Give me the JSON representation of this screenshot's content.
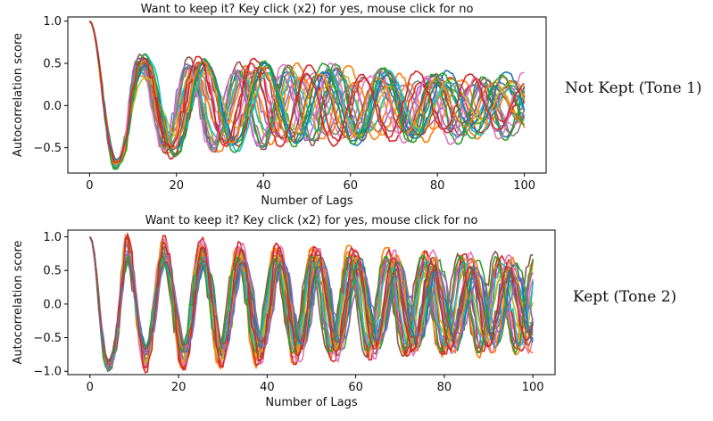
{
  "chart_data": [
    {
      "type": "line",
      "title": "Want to keep it? Key click (x2) for yes, mouse click for no",
      "xlabel": "Number of Lags",
      "ylabel": "Autocorrelation score",
      "xlim": [
        -5,
        105
      ],
      "ylim": [
        -0.8,
        1.05
      ],
      "xticks": [
        0,
        20,
        40,
        60,
        80,
        100
      ],
      "yticks": [
        -0.5,
        0.0,
        0.5,
        1.0
      ],
      "ytick_labels": [
        "−0.5",
        "0.0",
        "0.5",
        "1.0"
      ],
      "grid": false,
      "series_count": 24,
      "model": {
        "lags": 100,
        "start": 1.0,
        "first_min": -0.72,
        "first_min_lag": 6,
        "period_range": [
          11,
          14.5
        ],
        "amplitude_start": 0.55,
        "amplitude_end": 0.28
      }
    },
    {
      "type": "line",
      "title": "Want to keep it? Key click (x2) for yes, mouse click for no",
      "xlabel": "Number of Lags",
      "ylabel": "Autocorrelation score",
      "xlim": [
        -5,
        105
      ],
      "ylim": [
        -1.05,
        1.1
      ],
      "xticks": [
        0,
        20,
        40,
        60,
        80,
        100
      ],
      "yticks": [
        -1.0,
        -0.5,
        0.0,
        0.5,
        1.0
      ],
      "ytick_labels": [
        "−1.0",
        "−0.5",
        "0.0",
        "0.5",
        "1.0"
      ],
      "grid": false,
      "series_count": 26,
      "model": {
        "lags": 100,
        "start": 1.0,
        "first_min": -0.95,
        "first_min_lag": 4,
        "period_range": [
          8.3,
          8.9
        ],
        "amplitude_start": 0.95,
        "amplitude_end": 0.55
      }
    }
  ],
  "annotations": {
    "chart1": "Not Kept (Tone 1)",
    "chart2": "Kept (Tone 2)"
  },
  "colors": [
    "#1f77b4",
    "#ff7f0e",
    "#2ca02c",
    "#d62728",
    "#9467bd",
    "#8c564b",
    "#e377c2",
    "#7f7f7f",
    "#bcbd22",
    "#17becf"
  ]
}
